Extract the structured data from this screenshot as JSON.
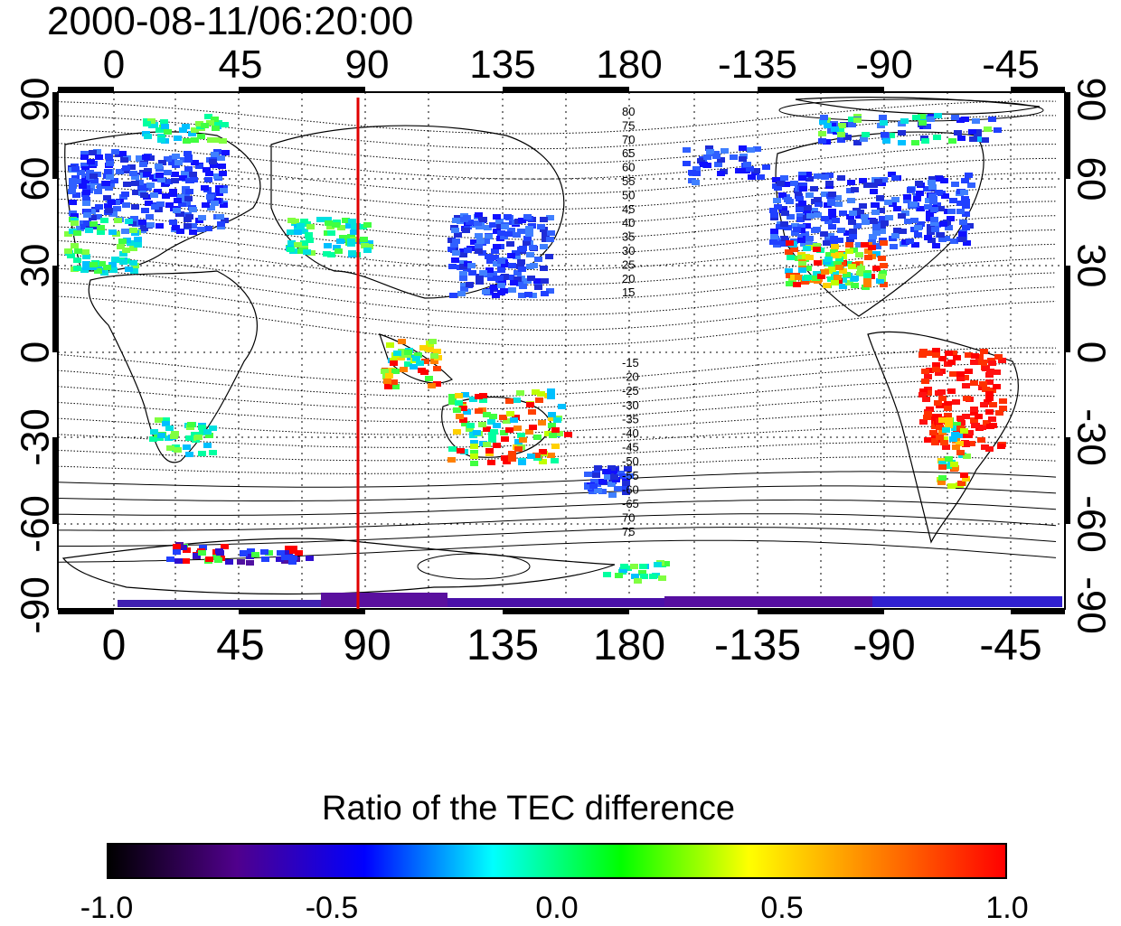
{
  "title": "2000-08-11/06:20:00",
  "map": {
    "projection": "longitude/latitude grid",
    "lon_ticks_top": [
      "0",
      "45",
      "90",
      "135",
      "180",
      "-135",
      "-90",
      "-45"
    ],
    "lon_ticks_bottom": [
      "0",
      "45",
      "90",
      "135",
      "180",
      "-135",
      "-90",
      "-45"
    ],
    "lat_ticks_left": [
      "90",
      "60",
      "30",
      "0",
      "-30",
      "-60",
      "-90"
    ],
    "lat_ticks_right": [
      "90",
      "60",
      "30",
      "0",
      "-30",
      "-60",
      "-90"
    ],
    "grid": "dotted",
    "marker_line": {
      "longitude": 85,
      "color": "#e00000"
    },
    "contour_labels_north": [
      "80",
      "75",
      "70",
      "65",
      "60",
      "55",
      "50",
      "45",
      "40",
      "35",
      "30",
      "25",
      "20",
      "15"
    ],
    "contour_labels_south": [
      "-15",
      "-20",
      "-25",
      "-30",
      "-35",
      "-40",
      "-45",
      "-50",
      "-55",
      "-60",
      "-65",
      "70",
      "75"
    ]
  },
  "colorbar": {
    "title": "Ratio of the TEC difference",
    "ticks": [
      "-1.0",
      "-0.5",
      "0.0",
      "0.5",
      "1.0"
    ],
    "range": [
      -1.0,
      1.0
    ],
    "gradient": [
      "#000000",
      "#50008c",
      "#0000ff",
      "#00ffff",
      "#00ff00",
      "#ffff00",
      "#ff8000",
      "#ff0000"
    ]
  }
}
